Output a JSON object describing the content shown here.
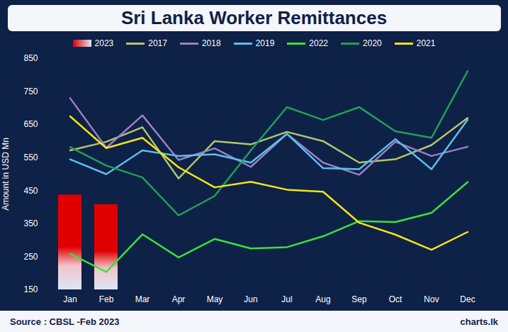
{
  "chart_data": {
    "type": "line",
    "title": "Sri Lanka Worker Remittances",
    "y_label": "Amount in USD Mn",
    "source": "Source : CBSL -Feb 2023",
    "brand": "charts.lk",
    "categories": [
      "Jan",
      "Feb",
      "Mar",
      "Apr",
      "May",
      "Jun",
      "Jul",
      "Aug",
      "Sep",
      "Oct",
      "Nov",
      "Dec"
    ],
    "series": [
      {
        "name": "2023",
        "type": "bar",
        "color": "#e00000",
        "values": [
          437,
          408,
          null,
          null,
          null,
          null,
          null,
          null,
          null,
          null,
          null,
          null
        ]
      },
      {
        "name": "2017",
        "type": "line",
        "color": "#b5c46a",
        "values": [
          572,
          598,
          642,
          487,
          600,
          590,
          628,
          600,
          535,
          545,
          588,
          670
        ]
      },
      {
        "name": "2018",
        "type": "line",
        "color": "#9b7fc4",
        "values": [
          730,
          580,
          678,
          543,
          578,
          522,
          622,
          535,
          498,
          598,
          555,
          583
        ]
      },
      {
        "name": "2019",
        "type": "line",
        "color": "#5bc0eb",
        "values": [
          545,
          500,
          572,
          555,
          560,
          535,
          622,
          518,
          515,
          606,
          515,
          665
        ]
      },
      {
        "name": "2022",
        "type": "line",
        "color": "#39e23a",
        "values": [
          259,
          204,
          318,
          248,
          304,
          275,
          279,
          312,
          358,
          355,
          383,
          476
        ]
      },
      {
        "name": "2020",
        "type": "line",
        "color": "#1ea05a",
        "values": [
          582,
          526,
          490,
          375,
          434,
          572,
          703,
          664,
          703,
          630,
          610,
          812
        ]
      },
      {
        "name": "2021",
        "type": "line",
        "color": "#f4e516",
        "values": [
          675,
          579,
          610,
          521,
          460,
          477,
          453,
          447,
          353,
          317,
          271,
          325
        ]
      }
    ],
    "ylim": [
      150,
      850
    ],
    "yticks": [
      150,
      250,
      350,
      450,
      550,
      650,
      750,
      850
    ],
    "grid": false,
    "legend": "top"
  }
}
